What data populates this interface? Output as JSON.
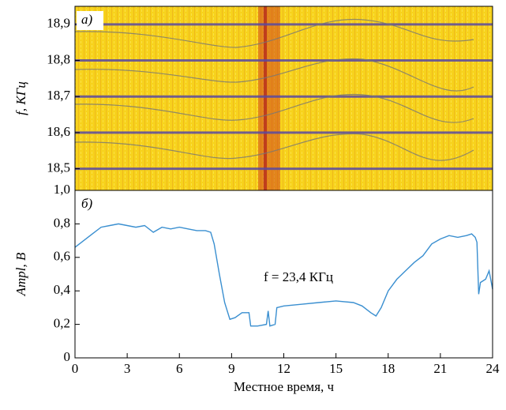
{
  "chart_data": [
    {
      "type": "spectrogram",
      "panel_label": "а)",
      "ylabel": "f, КГц",
      "ylim": [
        18.44,
        18.95
      ],
      "yticks": [
        {
          "value": 18.5,
          "label": "18,5"
        },
        {
          "value": 18.6,
          "label": "18,6"
        },
        {
          "value": 18.7,
          "label": "18,7"
        },
        {
          "value": 18.8,
          "label": "18,8"
        },
        {
          "value": 18.9,
          "label": "18,9"
        }
      ]
    },
    {
      "type": "line",
      "panel_label": "б)",
      "ylabel": "Ampl, В",
      "xlabel": "Местное время, ч",
      "annotation": "f = 23,4 КГц",
      "color": "#3a8fd0",
      "xlim": [
        0,
        24
      ],
      "xticks": [
        0,
        3,
        6,
        9,
        12,
        15,
        18,
        21,
        24
      ],
      "ylim": [
        0,
        1.0
      ],
      "yticks": [
        0,
        {
          "value": 0.2,
          "label": "0,2"
        },
        {
          "value": 0.4,
          "label": "0,4"
        },
        {
          "value": 0.6,
          "label": "0,6"
        },
        {
          "value": 0.8,
          "label": "0,8"
        },
        {
          "value": 1.0,
          "label": "1,0"
        }
      ],
      "x": [
        0,
        0.5,
        1,
        1.5,
        2,
        2.5,
        3,
        3.5,
        4,
        4.5,
        5,
        5.5,
        6,
        6.5,
        7,
        7.5,
        7.8,
        8,
        8.3,
        8.6,
        8.9,
        9.2,
        9.6,
        10,
        10.1,
        10.5,
        11,
        11.1,
        11.2,
        11.5,
        11.6,
        12,
        13,
        14,
        15,
        16,
        16.5,
        17,
        17.3,
        17.6,
        18,
        18.5,
        19,
        19.5,
        20,
        20.5,
        21,
        21.5,
        22,
        22.5,
        22.8,
        23,
        23.1,
        23.2,
        23.3,
        23.6,
        23.8,
        24
      ],
      "values": [
        0.66,
        0.7,
        0.74,
        0.78,
        0.79,
        0.8,
        0.79,
        0.78,
        0.79,
        0.75,
        0.78,
        0.77,
        0.78,
        0.77,
        0.76,
        0.76,
        0.75,
        0.68,
        0.5,
        0.33,
        0.23,
        0.24,
        0.27,
        0.27,
        0.19,
        0.19,
        0.2,
        0.28,
        0.19,
        0.2,
        0.3,
        0.31,
        0.32,
        0.33,
        0.34,
        0.33,
        0.31,
        0.27,
        0.25,
        0.3,
        0.4,
        0.47,
        0.52,
        0.57,
        0.61,
        0.68,
        0.71,
        0.73,
        0.72,
        0.73,
        0.74,
        0.72,
        0.69,
        0.38,
        0.45,
        0.47,
        0.52,
        0.41
      ]
    }
  ]
}
